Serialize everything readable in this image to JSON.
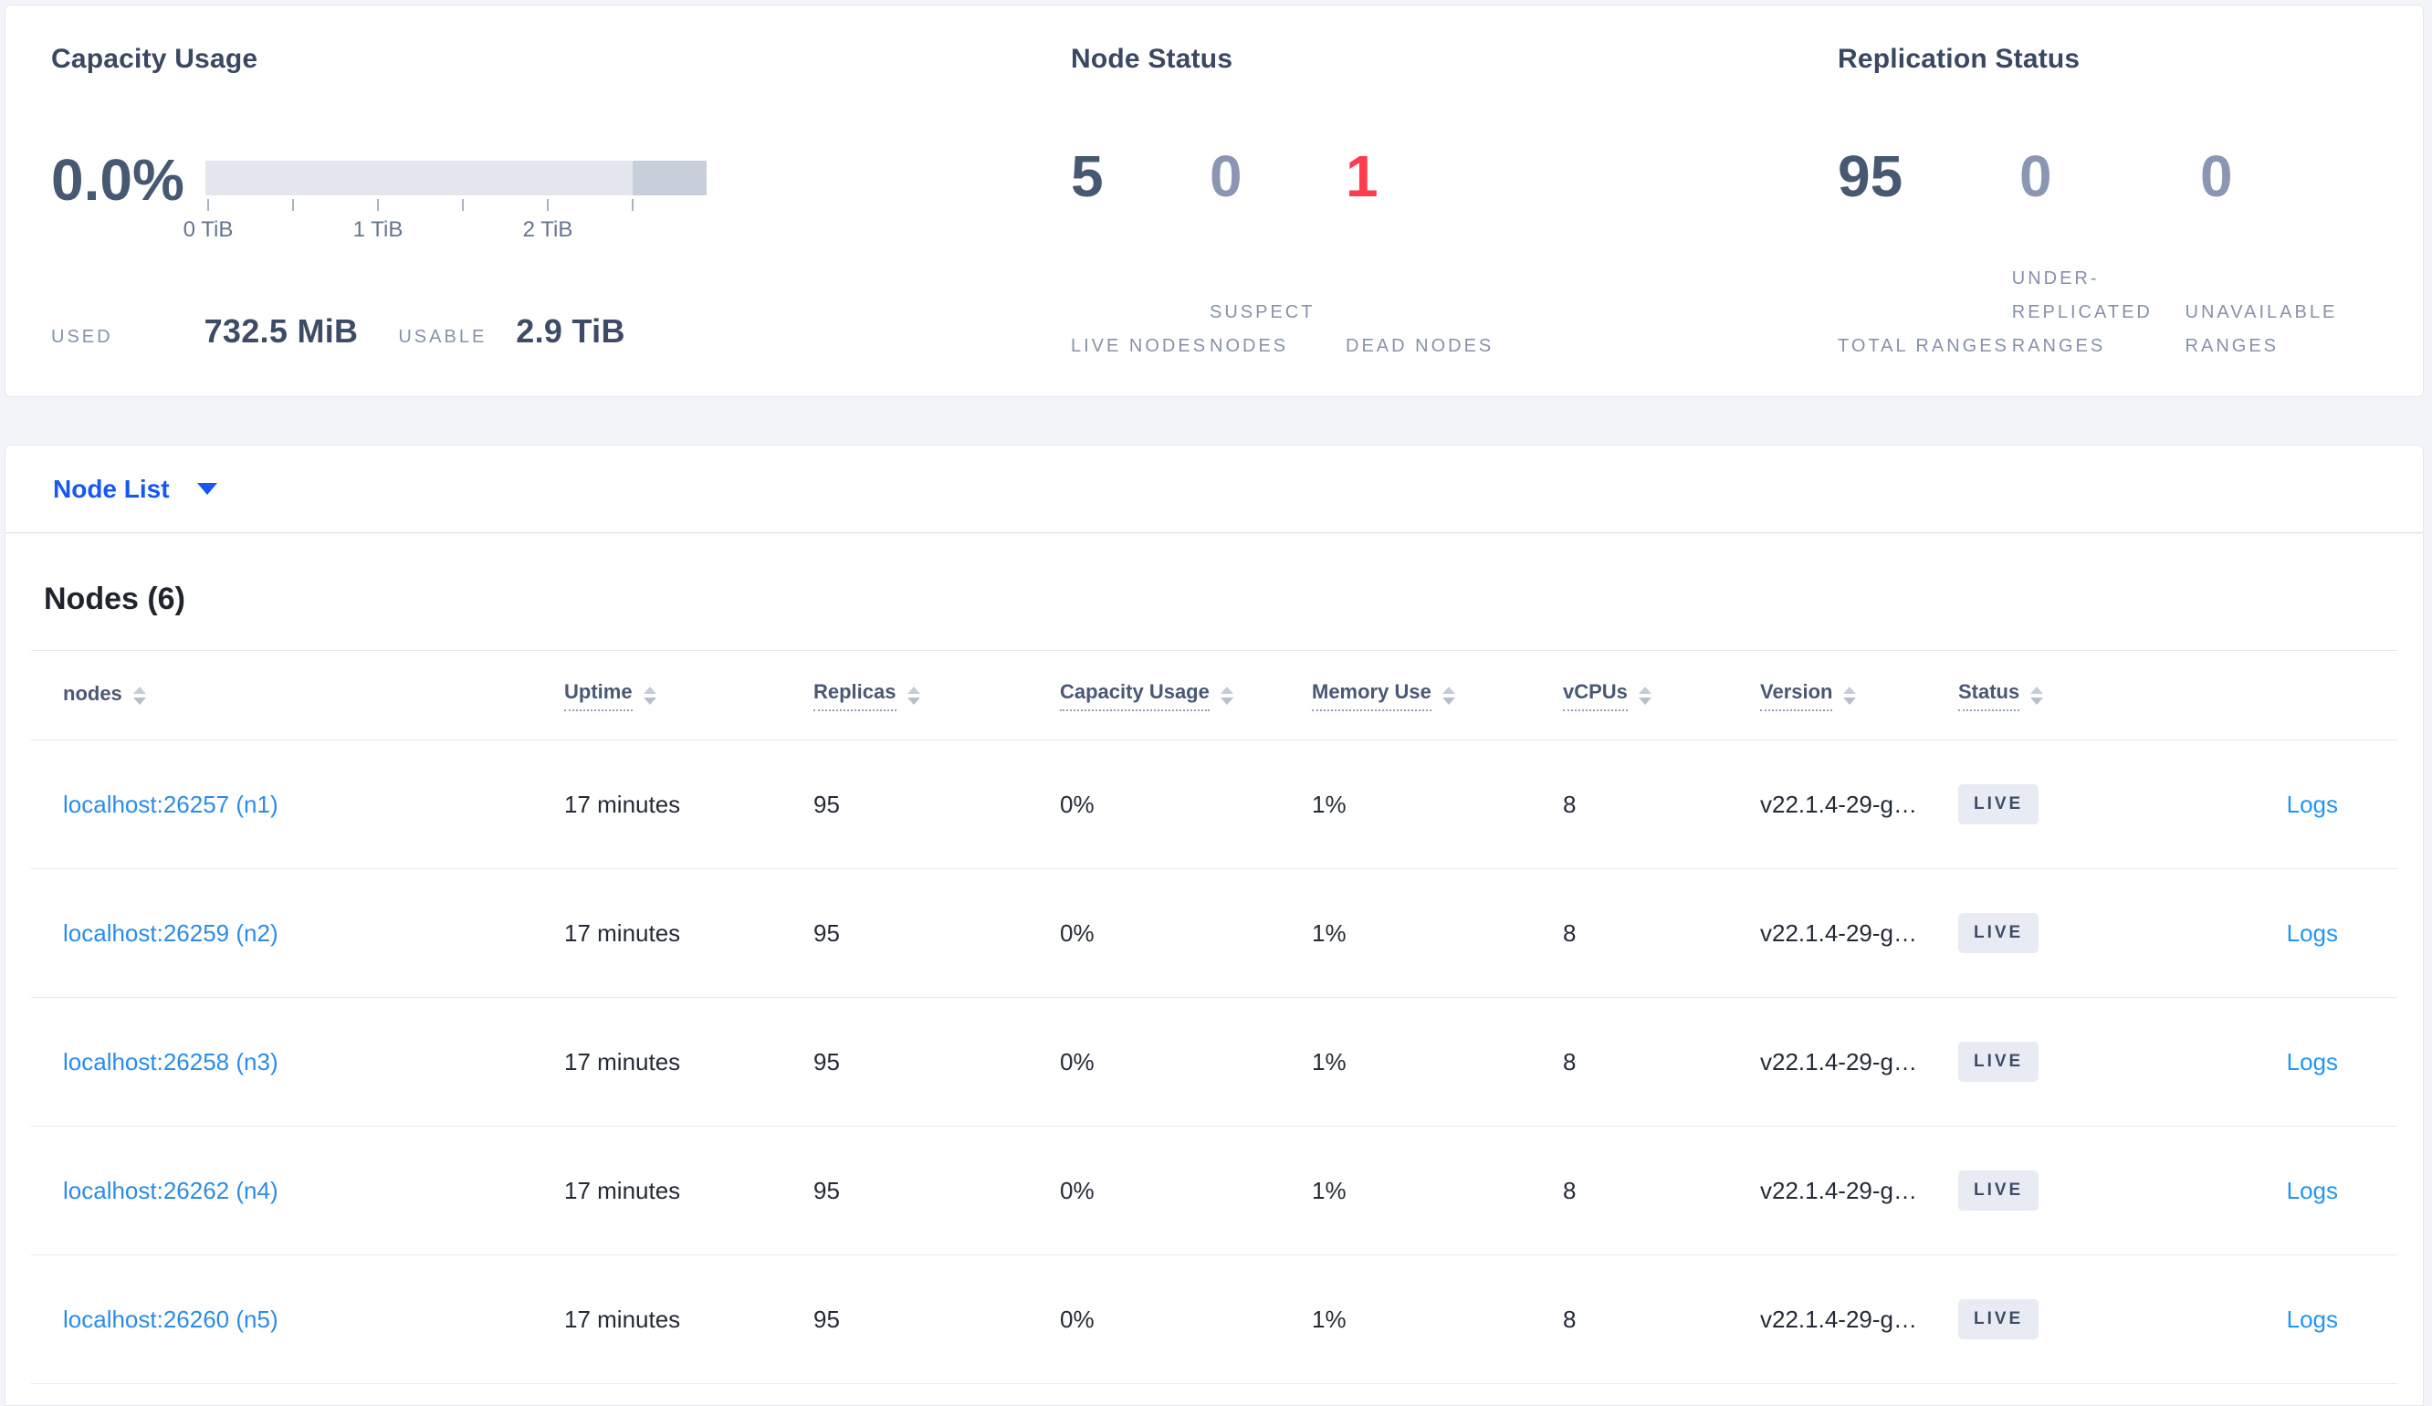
{
  "colors": {
    "accent_blue": "#1657f5",
    "link_blue": "#2b8ce8",
    "logs_blue": "#2196f3",
    "dead_red": "#ff3b4e",
    "number_dark": "#475872",
    "number_muted": "#8b97b2",
    "badge_bg": "#e8ebf3",
    "badge_text": "#3e4c66"
  },
  "capacity": {
    "title": "Capacity Usage",
    "percent": "0.0%",
    "tick_labels": [
      "0 TiB",
      "1 TiB",
      "2 TiB"
    ],
    "used_label": "USED",
    "used_value": "732.5 MiB",
    "usable_label": "USABLE",
    "usable_value": "2.9 TiB"
  },
  "node_status": {
    "title": "Node Status",
    "stats": [
      {
        "value": "5",
        "label": "LIVE NODES",
        "variant": "dark"
      },
      {
        "value": "0",
        "label": "SUSPECT NODES",
        "variant": "muted"
      },
      {
        "value": "1",
        "label": "DEAD NODES",
        "variant": "red"
      }
    ]
  },
  "replication": {
    "title": "Replication Status",
    "stats": [
      {
        "value": "95",
        "label": "TOTAL RANGES",
        "variant": "dark"
      },
      {
        "value": "0",
        "label": "UNDER-REPLICATED RANGES",
        "variant": "muted"
      },
      {
        "value": "0",
        "label": "UNAVAILABLE RANGES",
        "variant": "muted"
      }
    ]
  },
  "node_list": {
    "label": "Node List"
  },
  "nodes": {
    "title": "Nodes (6)",
    "columns": [
      {
        "label": "nodes",
        "underline": false
      },
      {
        "label": "Uptime",
        "underline": true
      },
      {
        "label": "Replicas",
        "underline": true
      },
      {
        "label": "Capacity Usage",
        "underline": true
      },
      {
        "label": "Memory Use",
        "underline": true
      },
      {
        "label": "vCPUs",
        "underline": true
      },
      {
        "label": "Version",
        "underline": true
      },
      {
        "label": "Status",
        "underline": true
      }
    ],
    "rows": [
      {
        "address": "localhost:26257 (n1)",
        "uptime": "17 minutes",
        "replicas": "95",
        "capacity_usage": "0%",
        "memory_use": "1%",
        "vcpus": "8",
        "version": "v22.1.4-29-g…",
        "status": "LIVE",
        "logs": "Logs"
      },
      {
        "address": "localhost:26259 (n2)",
        "uptime": "17 minutes",
        "replicas": "95",
        "capacity_usage": "0%",
        "memory_use": "1%",
        "vcpus": "8",
        "version": "v22.1.4-29-g…",
        "status": "LIVE",
        "logs": "Logs"
      },
      {
        "address": "localhost:26258 (n3)",
        "uptime": "17 minutes",
        "replicas": "95",
        "capacity_usage": "0%",
        "memory_use": "1%",
        "vcpus": "8",
        "version": "v22.1.4-29-g…",
        "status": "LIVE",
        "logs": "Logs"
      },
      {
        "address": "localhost:26262 (n4)",
        "uptime": "17 minutes",
        "replicas": "95",
        "capacity_usage": "0%",
        "memory_use": "1%",
        "vcpus": "8",
        "version": "v22.1.4-29-g…",
        "status": "LIVE",
        "logs": "Logs"
      },
      {
        "address": "localhost:26260 (n5)",
        "uptime": "17 minutes",
        "replicas": "95",
        "capacity_usage": "0%",
        "memory_use": "1%",
        "vcpus": "8",
        "version": "v22.1.4-29-g…",
        "status": "LIVE",
        "logs": "Logs"
      }
    ]
  }
}
